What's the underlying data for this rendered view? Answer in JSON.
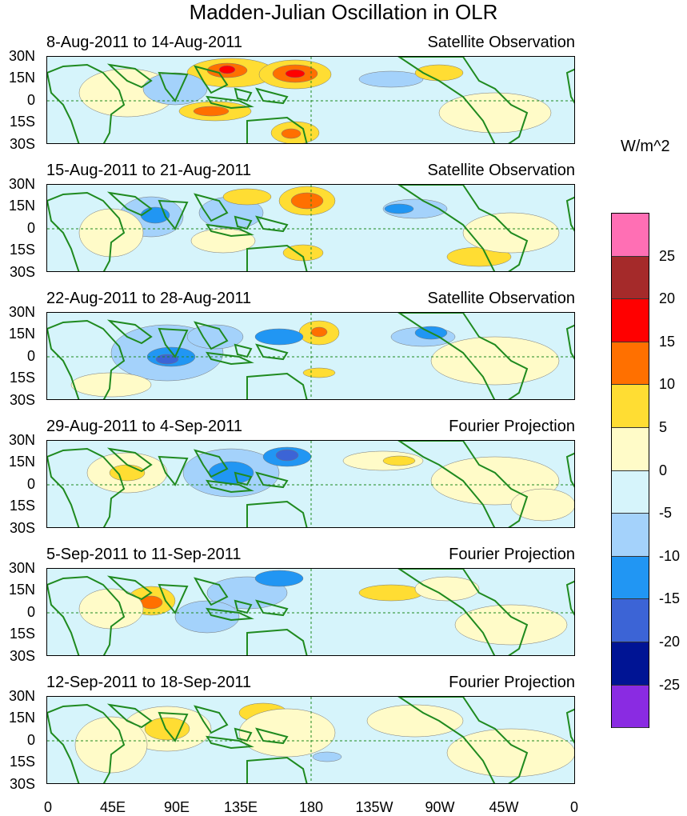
{
  "title": "Madden-Julian Oscillation in OLR",
  "units": "W/m^2",
  "panels": [
    {
      "date_range": "8-Aug-2011 to 14-Aug-2011",
      "source": "Satellite Observation"
    },
    {
      "date_range": "15-Aug-2011 to 21-Aug-2011",
      "source": "Satellite Observation"
    },
    {
      "date_range": "22-Aug-2011 to 28-Aug-2011",
      "source": "Satellite Observation"
    },
    {
      "date_range": "29-Aug-2011 to 4-Sep-2011",
      "source": "Fourier Projection"
    },
    {
      "date_range": "5-Sep-2011 to 11-Sep-2011",
      "source": "Fourier Projection"
    },
    {
      "date_range": "12-Sep-2011 to 18-Sep-2011",
      "source": "Fourier Projection"
    }
  ],
  "lat_labels": [
    "30N",
    "15N",
    "0",
    "15S",
    "30S"
  ],
  "lon_labels": [
    "0",
    "45E",
    "90E",
    "135E",
    "180",
    "135W",
    "90W",
    "45W",
    "0"
  ],
  "colorbar": {
    "labels": [
      "25",
      "20",
      "15",
      "10",
      "5",
      "0",
      "-5",
      "-10",
      "-15",
      "-20",
      "-25"
    ],
    "colors": [
      "#ff6fb4",
      "#a52a2a",
      "#ff0000",
      "#ff7000",
      "#ffdd33",
      "#fffbc8",
      "#d6f4fb",
      "#a4d2fb",
      "#2196f3",
      "#3c64d6",
      "#001494",
      "#8a2be2"
    ]
  },
  "colors": {
    "land": "#1f8a1f",
    "neutral_positive": "#fffbc8",
    "neutral_negative": "#d6f4fb"
  }
}
